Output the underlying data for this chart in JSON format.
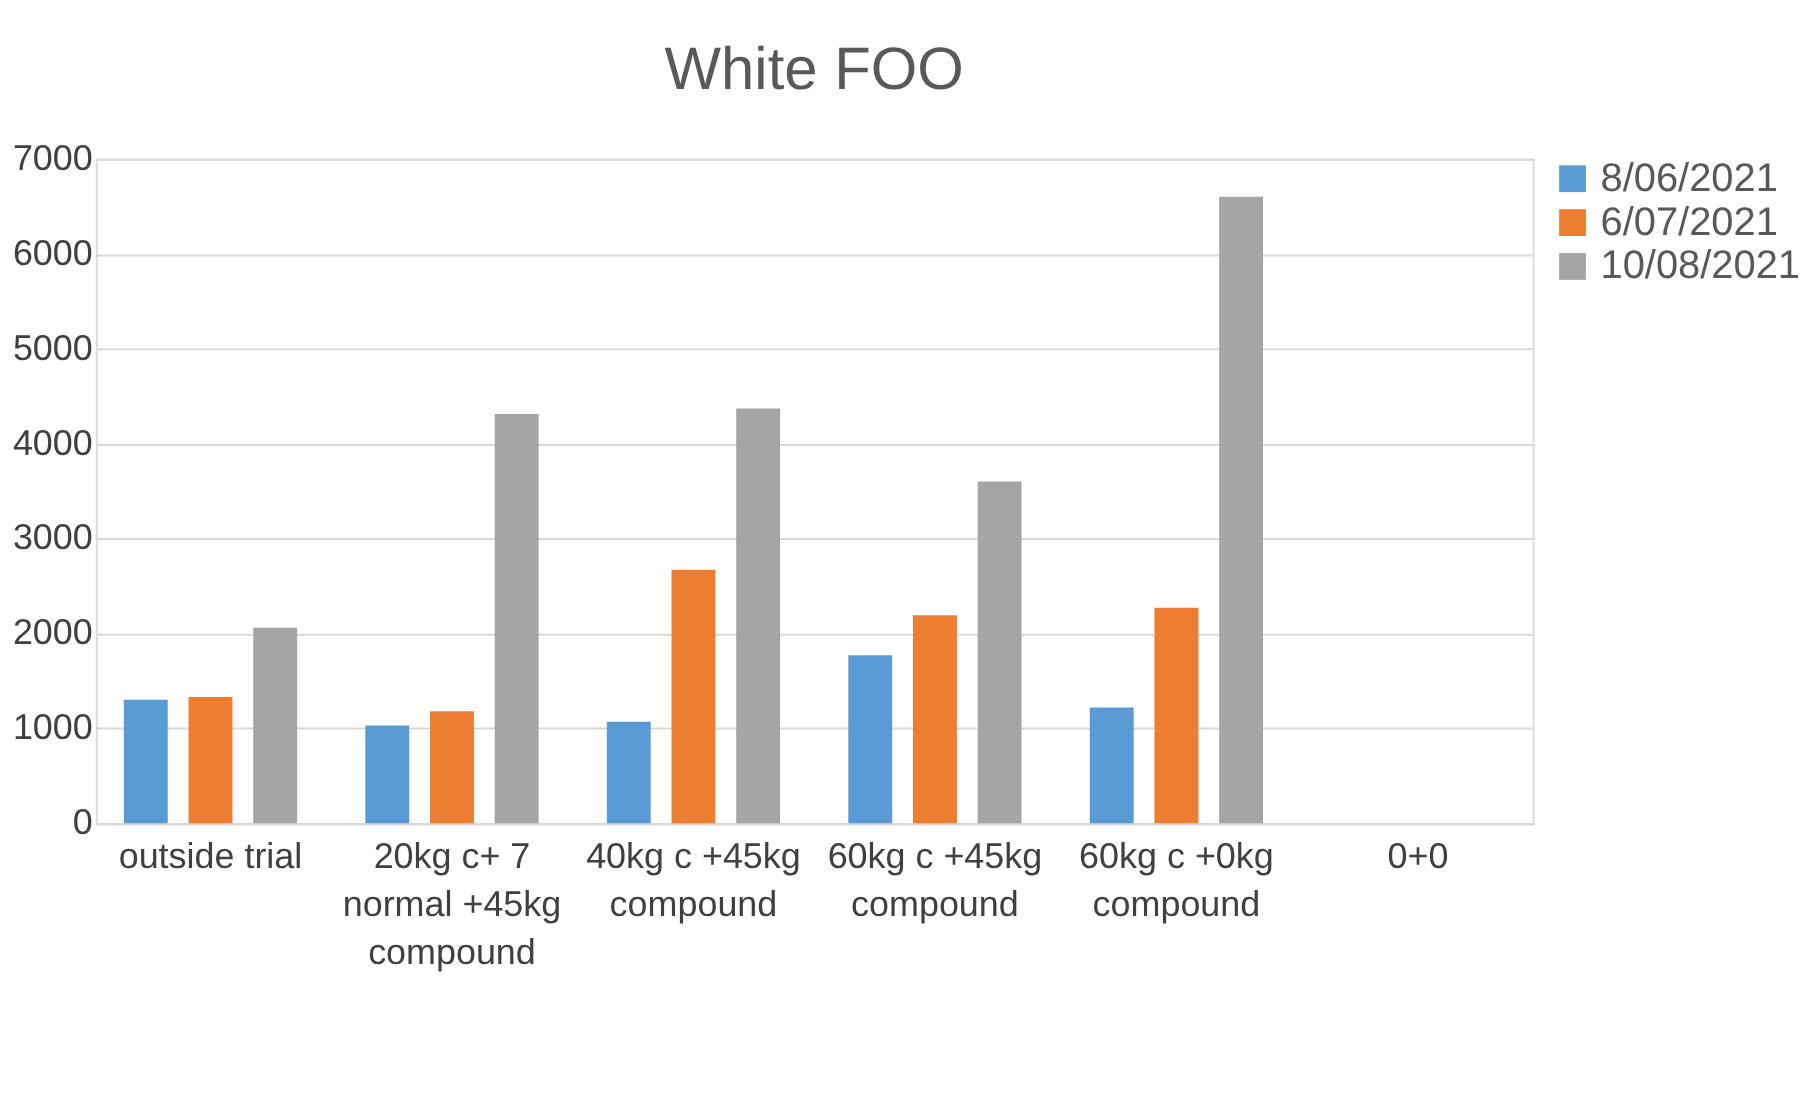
{
  "chart_data": {
    "type": "bar",
    "title": "White FOO",
    "categories": [
      "outside trial",
      "20kg c+ 7 normal +45kg compound",
      "40kg c +45kg compound",
      "60kg c +45kg compound",
      "60kg c +0kg compound",
      "0+0"
    ],
    "series": [
      {
        "name": "8/06/2021",
        "color": "#5b9bd5",
        "values": [
          1300,
          1030,
          1070,
          1770,
          1220,
          0
        ]
      },
      {
        "name": "6/07/2021",
        "color": "#ed7d31",
        "values": [
          1330,
          1180,
          2670,
          2190,
          2270,
          0
        ]
      },
      {
        "name": "10/08/2021",
        "color": "#a5a5a5",
        "values": [
          2060,
          4310,
          4370,
          3600,
          6600,
          0
        ]
      }
    ],
    "ylim": [
      0,
      7000
    ],
    "yticks": [
      0,
      1000,
      2000,
      3000,
      4000,
      5000,
      6000,
      7000
    ],
    "grid": "y",
    "legend": "top right"
  }
}
